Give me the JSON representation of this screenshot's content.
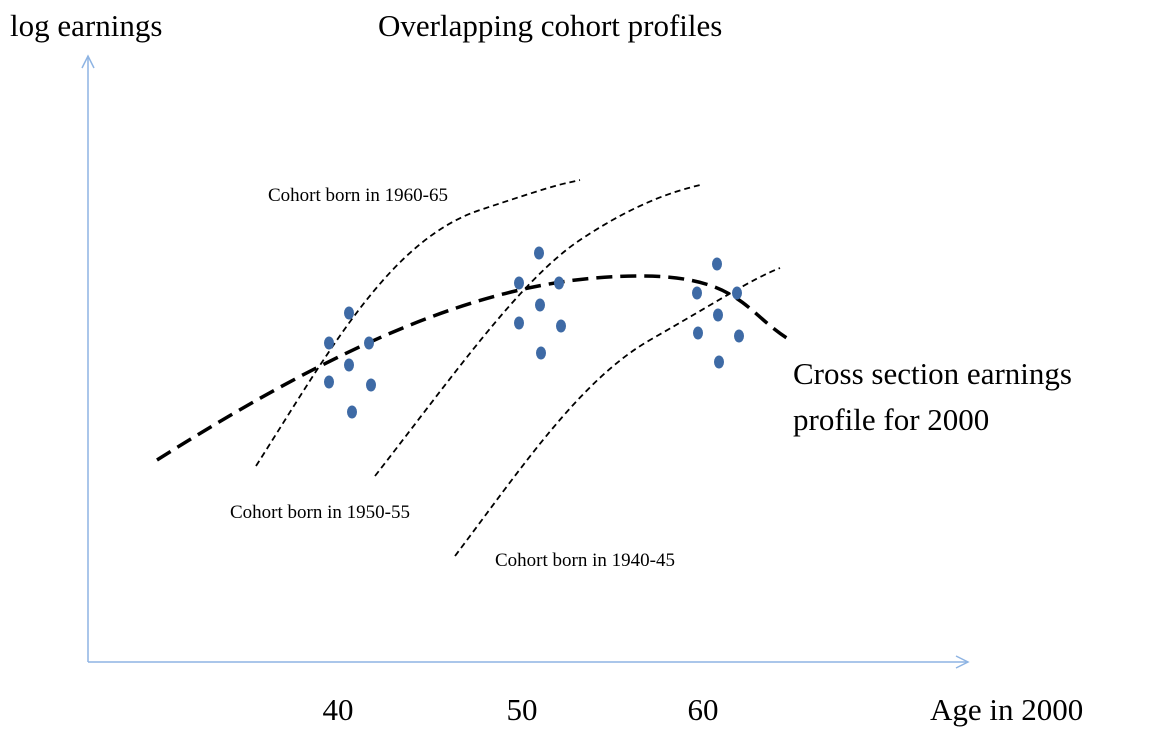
{
  "title": "Overlapping cohort profiles",
  "y_axis_label": "log earnings",
  "x_axis_label": "Age in 2000",
  "x_tick_labels": [
    "40",
    "50",
    "60"
  ],
  "cohort_labels": [
    "Cohort born in 1960-65",
    "Cohort born in 1950-55",
    "Cohort born in 1940-45"
  ],
  "cross_section_label": [
    "Cross section earnings",
    "profile for 2000"
  ]
}
